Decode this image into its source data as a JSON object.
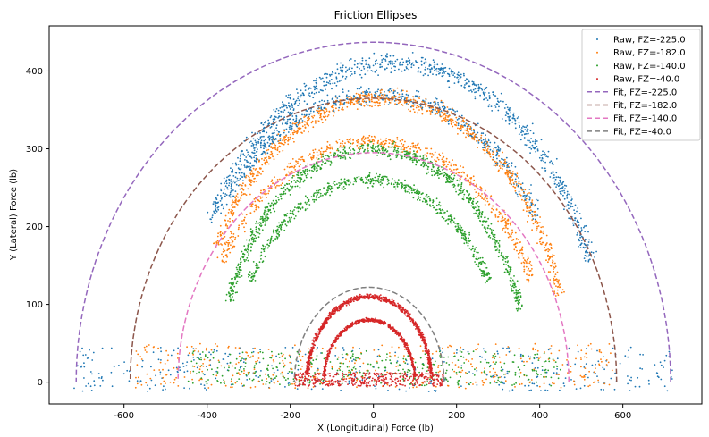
{
  "chart_data": {
    "type": "scatter",
    "title": "Friction Ellipses",
    "xlabel": "X (Longitudinal) Force (lb)",
    "ylabel": "Y (Lateral) Force (lb)",
    "xlim": [
      -780,
      790
    ],
    "ylim": [
      -28,
      458
    ],
    "xticks": [
      -600,
      -400,
      -200,
      0,
      200,
      400,
      600
    ],
    "yticks": [
      0,
      100,
      200,
      300,
      400
    ],
    "grid": false,
    "legend_position": "top-right",
    "legend": [
      "Raw, FZ=-225.0",
      "Raw, FZ=-182.0",
      "Raw, FZ=-140.0",
      "Raw, FZ=-40.0",
      "Fit, FZ=-225.0",
      "Fit, FZ=-182.0",
      "Fit, FZ=-140.0",
      "Fit, FZ=-40.0"
    ],
    "raw_series": [
      {
        "name": "Raw, FZ=-225.0",
        "color": "#1f77b4",
        "upper_arc": {
          "center_x": 50,
          "rx": 510,
          "ry": 410,
          "angle_deg": [
            22,
            150
          ]
        },
        "inner_arc": {
          "center_x": 10,
          "rx": 470,
          "ry": 370,
          "angle_deg": [
            35,
            140
          ]
        },
        "base_band": {
          "x": [
            -720,
            720
          ],
          "y": [
            -12,
            45
          ]
        }
      },
      {
        "name": "Raw, FZ=-182.0",
        "color": "#ff7f0e",
        "upper_arc": {
          "center_x": 20,
          "rx": 450,
          "ry": 365,
          "angle_deg": [
            18,
            152
          ]
        },
        "inner_arc": {
          "center_x": 0,
          "rx": 420,
          "ry": 310,
          "angle_deg": [
            25,
            150
          ]
        },
        "base_band": {
          "x": [
            -580,
            580
          ],
          "y": [
            -8,
            50
          ]
        }
      },
      {
        "name": "Raw, FZ=-140.0",
        "color": "#2ca02c",
        "upper_arc": {
          "center_x": 0,
          "rx": 370,
          "ry": 300,
          "angle_deg": [
            18,
            160
          ]
        },
        "inner_arc": {
          "center_x": -10,
          "rx": 330,
          "ry": 260,
          "angle_deg": [
            30,
            150
          ]
        },
        "base_band": {
          "x": [
            -450,
            450
          ],
          "y": [
            -5,
            40
          ]
        }
      },
      {
        "name": "Raw, FZ=-40.0",
        "color": "#d62728",
        "upper_arc": {
          "center_x": -10,
          "rx": 150,
          "ry": 110,
          "angle_deg": [
            5,
            175
          ]
        },
        "inner_arc": {
          "center_x": -10,
          "rx": 110,
          "ry": 80,
          "angle_deg": [
            5,
            175
          ]
        },
        "base_band": {
          "x": [
            -190,
            170
          ],
          "y": [
            -5,
            12
          ]
        }
      }
    ],
    "fit_series": [
      {
        "name": "Fit, FZ=-225.0",
        "color": "#9467bd",
        "center_x": 0,
        "a": 715,
        "b": 437
      },
      {
        "name": "Fit, FZ=-182.0",
        "color": "#8c564b",
        "center_x": 0,
        "a": 585,
        "b": 365
      },
      {
        "name": "Fit, FZ=-140.0",
        "color": "#e377c2",
        "center_x": 0,
        "a": 470,
        "b": 295
      },
      {
        "name": "Fit, FZ=-40.0",
        "color": "#7f7f7f",
        "center_x": -10,
        "a": 180,
        "b": 122
      }
    ]
  }
}
